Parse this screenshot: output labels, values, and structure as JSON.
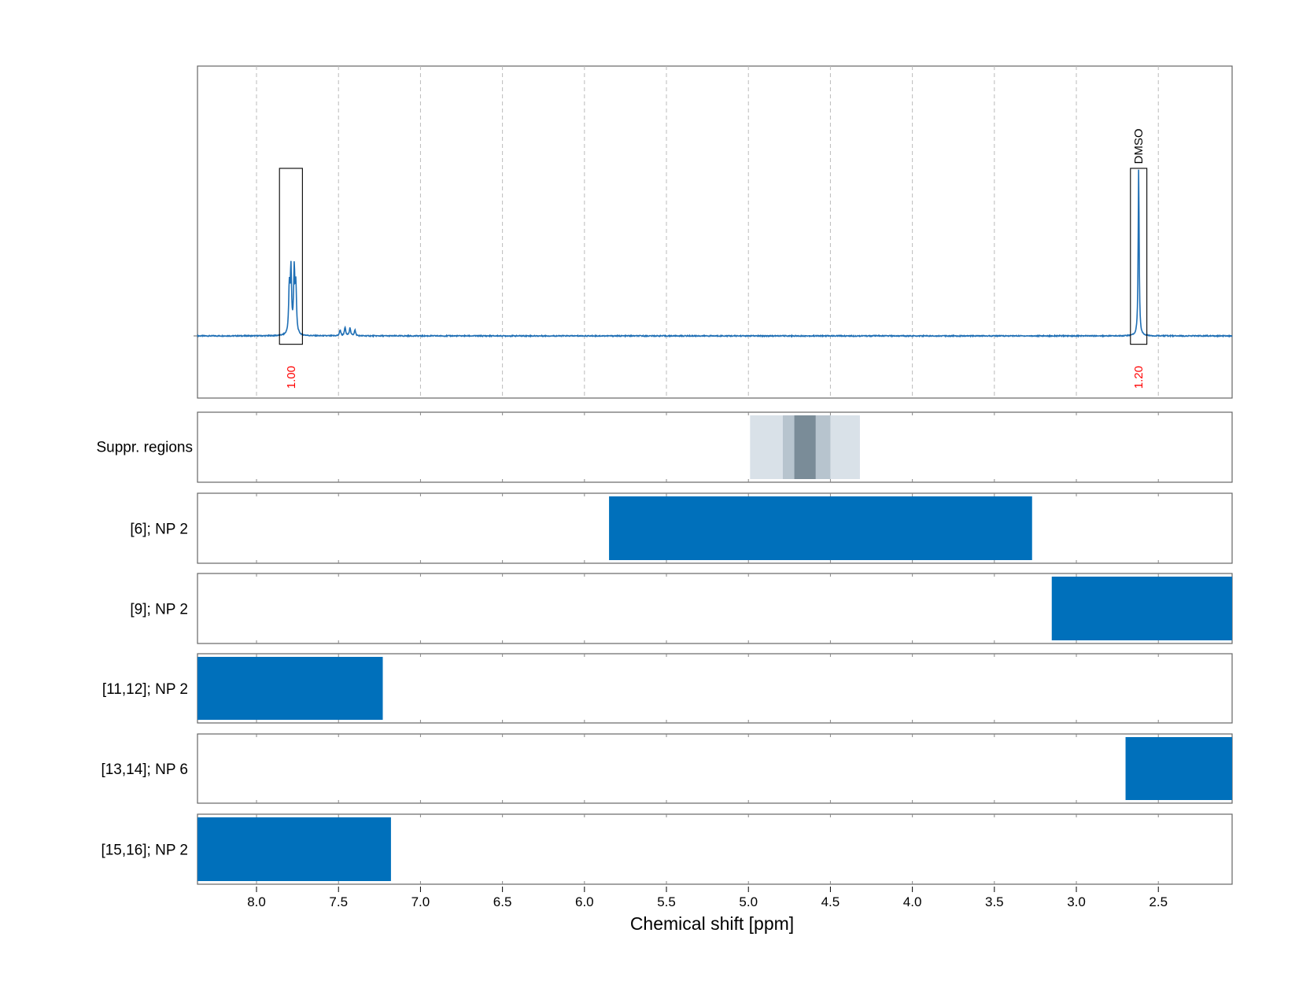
{
  "chart_data": {
    "type": "line",
    "xlabel": "Chemical shift [ppm]",
    "xlim": [
      8.36,
      2.05
    ],
    "x_reversed": true,
    "x_ticks": [
      8.0,
      7.5,
      7.0,
      6.5,
      6.0,
      5.5,
      5.0,
      4.5,
      4.0,
      3.5,
      3.0,
      2.5
    ],
    "x_tick_labels": [
      "8.0",
      "7.5",
      "7.0",
      "6.5",
      "6.0",
      "5.5",
      "5.0",
      "4.5",
      "4.0",
      "3.5",
      "3.0",
      "2.5"
    ],
    "grid": true,
    "colors": {
      "spectrum": "#1f6fb5",
      "range_bar": "#0070bb",
      "integral_label": "#ff0000",
      "grid": "#bbbbbb",
      "suppr_light": "#d9e1e8",
      "suppr_mid": "#b7c4ce",
      "suppr_dark": "#7a8c98"
    },
    "spectrum": {
      "baseline": 0.0,
      "peaks": [
        {
          "center": 7.78,
          "height": 0.38,
          "shape": "multiplet",
          "components": [
            7.8,
            7.79,
            7.77,
            7.76
          ]
        },
        {
          "center": 7.45,
          "height": 0.05,
          "shape": "multiplet",
          "components": [
            7.49,
            7.46,
            7.43,
            7.4
          ]
        },
        {
          "center": 2.62,
          "height": 1.0,
          "shape": "singlet",
          "components": [
            2.62
          ]
        }
      ],
      "ylim": [
        -0.36,
        1.55
      ]
    },
    "integration_regions": [
      {
        "start": 7.86,
        "end": 7.72,
        "y_top": 1.0,
        "value": "1.00",
        "label": ""
      },
      {
        "start": 2.67,
        "end": 2.57,
        "y_top": 1.0,
        "value": "1.20",
        "label": "DMSO"
      }
    ],
    "suppression_regions": {
      "label": "Suppr. regions",
      "bands": [
        {
          "start": 4.99,
          "end": 4.32,
          "level": "light"
        },
        {
          "start": 4.79,
          "end": 4.5,
          "level": "mid"
        },
        {
          "start": 4.72,
          "end": 4.59,
          "level": "dark"
        }
      ]
    },
    "ranges": [
      {
        "label": "[6]; NP 2",
        "start": 5.85,
        "end": 3.27
      },
      {
        "label": "[9]; NP 2",
        "start": 3.15,
        "end": 2.05
      },
      {
        "label": "[11,12]; NP 2",
        "start": 8.36,
        "end": 7.23
      },
      {
        "label": "[13,14]; NP 6",
        "start": 2.7,
        "end": 2.05
      },
      {
        "label": "[15,16]; NP 2",
        "start": 8.36,
        "end": 7.18
      }
    ]
  }
}
